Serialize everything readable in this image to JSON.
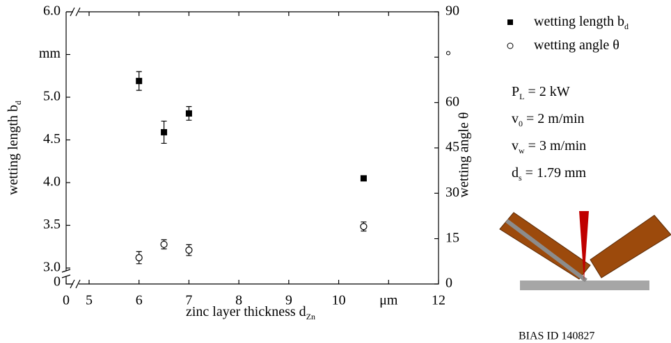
{
  "chart_data": {
    "type": "scatter",
    "x_label": {
      "text": "zinc layer thickness d",
      "sub": "Zn"
    },
    "y_label": {
      "text": "wetting length b",
      "sub": "d"
    },
    "y2_label": "wetting angle θ",
    "x": [
      6,
      6.5,
      7,
      10.5
    ],
    "series": [
      {
        "name": {
          "text": "wetting length b",
          "sub": "d"
        },
        "marker": "square",
        "color": "#000000",
        "values": [
          5.19,
          4.59,
          4.81,
          4.05
        ],
        "errors": [
          0.11,
          0.13,
          0.08,
          null
        ]
      },
      {
        "name": {
          "text": "wetting angle θ"
        },
        "marker": "circle",
        "color": "#000000",
        "axis": "y2",
        "values": [
          8.7,
          13.1,
          11.2,
          19.0
        ],
        "errors": [
          2.0,
          1.5,
          1.8,
          1.5
        ]
      }
    ],
    "xlim": [
      5,
      12
    ],
    "xticks": [
      5,
      6,
      7,
      8,
      9,
      10,
      {
        "value": 11,
        "label": "μm"
      },
      12
    ],
    "x_origin_tick": 0,
    "ylim": [
      3,
      6
    ],
    "yticks": [
      {
        "value": 3,
        "label": "3.0"
      },
      3.5,
      {
        "value": 4,
        "label": "4.0"
      },
      4.5,
      {
        "value": 5,
        "label": "5.0"
      },
      {
        "value": 5.5,
        "label": "mm"
      },
      {
        "value": 6,
        "label": "6.0"
      }
    ],
    "y_origin_tick": 0,
    "y2lim": [
      0,
      90
    ],
    "y2ticks": [
      0,
      15,
      30,
      45,
      60,
      {
        "value": 75,
        "label": "°"
      },
      90
    ],
    "parameters": [
      {
        "symbol": "P",
        "sub": "L",
        "text": " = 2 kW"
      },
      {
        "symbol": "v",
        "sub": "0",
        "text": " = 2 m/min"
      },
      {
        "symbol": "v",
        "sub": "w",
        "text": " = 3 m/min"
      },
      {
        "symbol": "d",
        "sub": "s",
        "text": " = 1.79 mm"
      }
    ],
    "footnote": "BIAS ID 140827"
  }
}
